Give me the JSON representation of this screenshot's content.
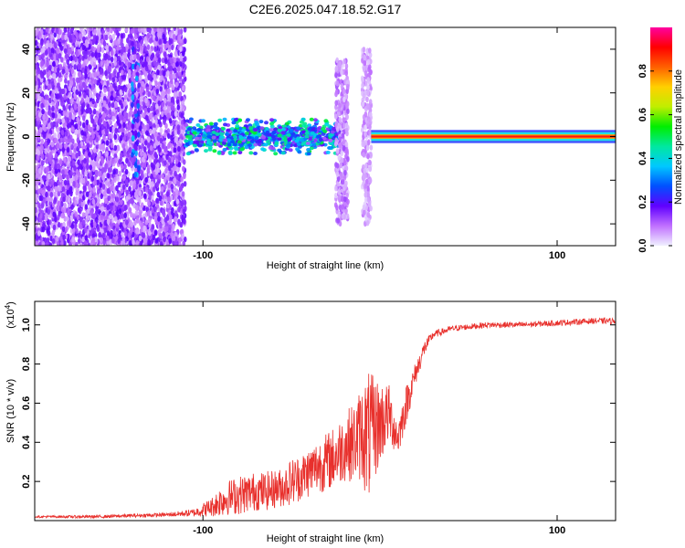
{
  "figure_title": "C2E6.2025.047.18.52.G17",
  "chart_data": [
    {
      "type": "heatmap",
      "title": "C2E6.2025.047.18.52.G17",
      "xlabel": "Height of straight line (km)",
      "ylabel": "Frequency (Hz)",
      "xlim": [
        -195,
        133
      ],
      "ylim": [
        -50,
        50
      ],
      "xticks": [
        -100,
        100
      ],
      "yticks": [
        -40,
        -20,
        0,
        20,
        40
      ],
      "grid": false,
      "colorbar": {
        "label": "Normalized spectral amplitude",
        "range": [
          0,
          1
        ],
        "ticks": [
          "0.0",
          "0.2",
          "0.4",
          "0.6",
          "0.8"
        ],
        "colors": [
          "#f0f0ff",
          "#c070ff",
          "#6000ff",
          "#0050ff",
          "#00c8ff",
          "#00e8a0",
          "#00ee00",
          "#c0ee00",
          "#ffd000",
          "#ff6000",
          "#ff0000",
          "#ff00a0"
        ]
      },
      "regions": [
        {
          "name": "noise",
          "x_range": [
            -195,
            -110
          ],
          "freq_range": [
            -50,
            50
          ],
          "amplitude": 0.15
        },
        {
          "name": "noise-streak",
          "x_range": [
            -140,
            -136
          ],
          "freq_range": [
            -20,
            40
          ],
          "amplitude": 0.3
        },
        {
          "name": "transition-band",
          "x_range": [
            -110,
            -22
          ],
          "freq_range": [
            -8,
            8
          ],
          "amplitude": 0.35
        },
        {
          "name": "burst-1",
          "x_range": [
            -25,
            -18
          ],
          "freq_range": [
            -40,
            35
          ],
          "amplitude": 0.1
        },
        {
          "name": "burst-2",
          "x_range": [
            -10,
            -5
          ],
          "freq_range": [
            -40,
            40
          ],
          "amplitude": 0.08
        },
        {
          "name": "carrier-line",
          "x_range": [
            -5,
            133
          ],
          "freq_range": [
            -1,
            1
          ],
          "amplitude": 0.9
        }
      ]
    },
    {
      "type": "line",
      "title": "",
      "xlabel": "Height of straight line (km)",
      "ylabel": "SNR (10 * v/v)",
      "yscale_label": "(x10",
      "yscale_exp": "4",
      "yscale_close": ")",
      "xlim": [
        -195,
        133
      ],
      "ylim": [
        0,
        1.12
      ],
      "xticks": [
        -100,
        100
      ],
      "yticks": [
        "0.2",
        "0.4",
        "0.6",
        "0.8",
        "1.0"
      ],
      "grid": false,
      "color": "#e8302c",
      "series": [
        {
          "name": "SNR",
          "x": [
            -195,
            -160,
            -120,
            -105,
            -95,
            -90,
            -85,
            -80,
            -75,
            -70,
            -65,
            -60,
            -55,
            -50,
            -45,
            -40,
            -35,
            -30,
            -25,
            -20,
            -15,
            -10,
            -7,
            -5,
            0,
            5,
            10,
            15,
            20,
            25,
            30,
            40,
            60,
            80,
            100,
            120,
            133
          ],
          "y": [
            0.02,
            0.02,
            0.03,
            0.04,
            0.07,
            0.1,
            0.12,
            0.13,
            0.14,
            0.15,
            0.15,
            0.16,
            0.17,
            0.2,
            0.22,
            0.25,
            0.28,
            0.3,
            0.33,
            0.38,
            0.4,
            0.45,
            0.42,
            0.45,
            0.5,
            0.55,
            0.42,
            0.6,
            0.75,
            0.88,
            0.95,
            0.98,
            1.0,
            1.0,
            1.01,
            1.02,
            1.02
          ],
          "noise": [
            0.005,
            0.008,
            0.01,
            0.02,
            0.05,
            0.08,
            0.09,
            0.1,
            0.1,
            0.1,
            0.1,
            0.1,
            0.1,
            0.12,
            0.12,
            0.13,
            0.14,
            0.15,
            0.16,
            0.18,
            0.2,
            0.25,
            0.35,
            0.3,
            0.22,
            0.15,
            0.1,
            0.1,
            0.06,
            0.04,
            0.02,
            0.015,
            0.015,
            0.015,
            0.015,
            0.015,
            0.015
          ]
        }
      ]
    }
  ]
}
